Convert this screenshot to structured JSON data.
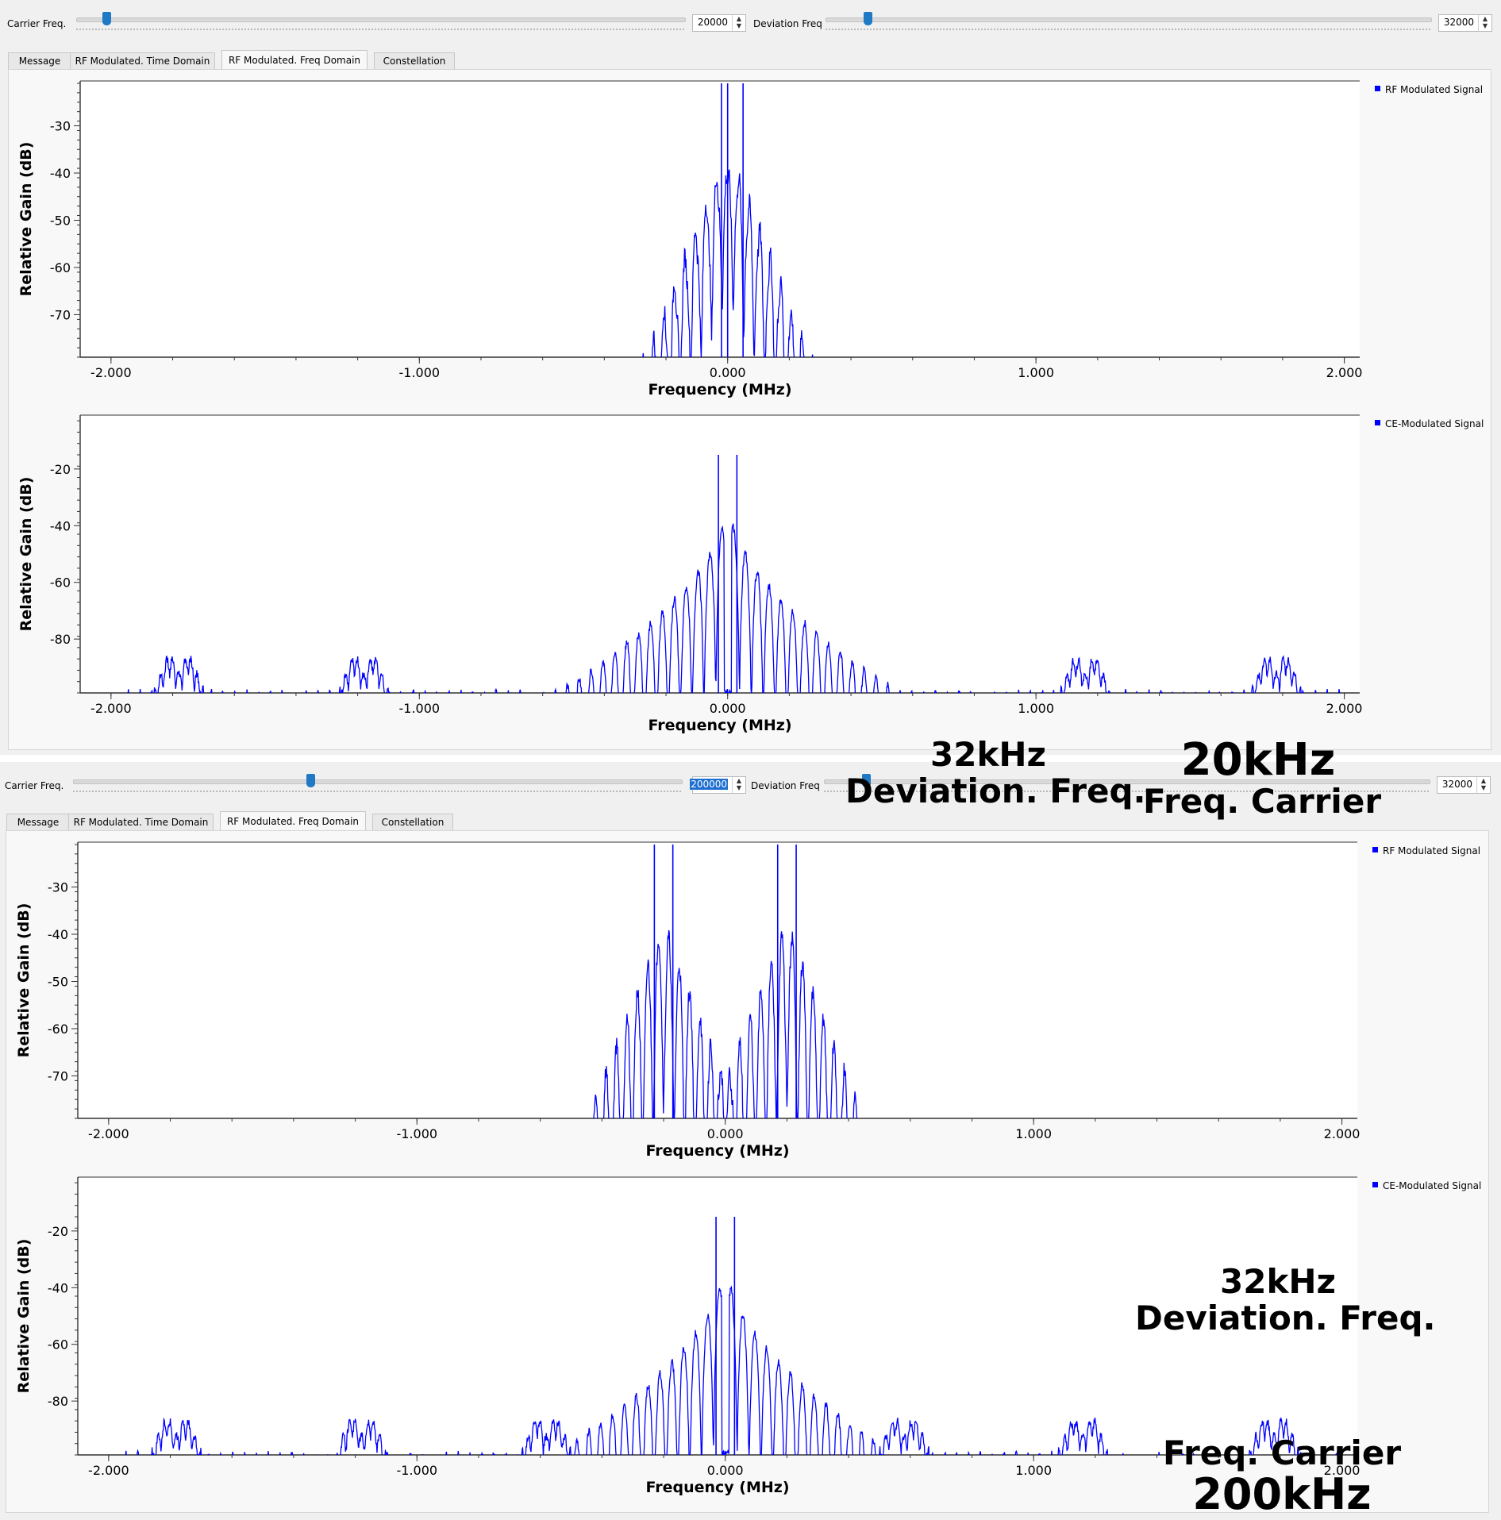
{
  "colors": {
    "series": "#0000ff",
    "background": "#f0f0f0",
    "plot_bg": "#ffffff",
    "slider": "#1f79c4"
  },
  "panels": [
    {
      "controls": {
        "carrier_label": "Carrier Freq.",
        "carrier_value": "20000",
        "carrier_slider": 0.05,
        "deviation_label": "Deviation Freq",
        "deviation_value": "32000",
        "deviation_slider": 0.07
      },
      "tabs": [
        "Message",
        "RF Modulated. Time Domain",
        "RF Modulated. Freq Domain",
        "Constellation"
      ],
      "active_tab": 2
    },
    {
      "controls": {
        "carrier_label": "Carrier Freq.",
        "carrier_value": "200000",
        "carrier_slider": 0.39,
        "deviation_label": "Deviation Freq",
        "deviation_value": "32000",
        "deviation_slider": 0.07
      },
      "tabs": [
        "Message",
        "RF Modulated. Time Domain",
        "RF Modulated. Freq Domain",
        "Constellation"
      ],
      "active_tab": 2
    }
  ],
  "chart_data": [
    {
      "type": "line",
      "panel": 0,
      "slot": "top",
      "series": [
        {
          "name": "RF Modulated Signal"
        }
      ],
      "xlabel": "Frequency (MHz)",
      "ylabel": "Relative Gain (dB)",
      "xlim": [
        -2.1,
        2.05
      ],
      "ylim": [
        -79,
        -20.5
      ],
      "xticks": [
        -2.0,
        -1.0,
        0.0,
        1.0,
        2.0
      ],
      "xtick_labels": [
        "-2.000",
        "-1.000",
        "0.000",
        "1.000",
        "2.000"
      ],
      "yticks": [
        -30,
        -40,
        -50,
        -60,
        -70
      ],
      "ytick_labels": [
        "-30",
        "-40",
        "-50",
        "-60",
        "-70"
      ],
      "carrier_mhz": 0.02,
      "deviation_mhz": 0.032,
      "peaks": [
        {
          "x": -0.02,
          "y": -21
        },
        {
          "x": 0.0,
          "y": -21
        },
        {
          "x": 0.05,
          "y": -21
        }
      ],
      "legend": "top-right"
    },
    {
      "type": "line",
      "panel": 0,
      "slot": "bottom",
      "series": [
        {
          "name": "CE-Modulated Signal"
        }
      ],
      "xlabel": "Frequency (MHz)",
      "ylabel": "Relative Gain (dB)",
      "xlim": [
        -2.1,
        2.05
      ],
      "ylim": [
        -99,
        -1
      ],
      "xticks": [
        -2.0,
        -1.0,
        0.0,
        1.0,
        2.0
      ],
      "xtick_labels": [
        "-2.000",
        "-1.000",
        "0.000",
        "1.000",
        "2.000"
      ],
      "yticks": [
        -20,
        -40,
        -60,
        -80
      ],
      "ytick_labels": [
        "-20",
        "-40",
        "-60",
        "-80"
      ],
      "peaks": [
        {
          "x": -0.03,
          "y": -15
        },
        {
          "x": 0.03,
          "y": -15
        }
      ],
      "spurs": [
        -1.81,
        -1.75,
        -1.21,
        -1.15,
        1.13,
        1.19,
        1.75,
        1.81
      ],
      "legend": "top-right"
    },
    {
      "type": "line",
      "panel": 1,
      "slot": "top",
      "series": [
        {
          "name": "RF Modulated Signal"
        }
      ],
      "xlabel": "Frequency (MHz)",
      "ylabel": "Relative Gain (dB)",
      "xlim": [
        -2.1,
        2.05
      ],
      "ylim": [
        -79,
        -20.5
      ],
      "xticks": [
        -2.0,
        -1.0,
        0.0,
        1.0,
        2.0
      ],
      "xtick_labels": [
        "-2.000",
        "-1.000",
        "0.000",
        "1.000",
        "2.000"
      ],
      "yticks": [
        -30,
        -40,
        -50,
        -60,
        -70
      ],
      "ytick_labels": [
        "-30",
        "-40",
        "-50",
        "-60",
        "-70"
      ],
      "carrier_mhz": 0.2,
      "deviation_mhz": 0.032,
      "peaks": [
        {
          "x": -0.23,
          "y": -21
        },
        {
          "x": -0.17,
          "y": -21
        },
        {
          "x": 0.17,
          "y": -21
        },
        {
          "x": 0.23,
          "y": -21
        }
      ],
      "legend": "top-right"
    },
    {
      "type": "line",
      "panel": 1,
      "slot": "bottom",
      "series": [
        {
          "name": "CE-Modulated Signal"
        }
      ],
      "xlabel": "Frequency (MHz)",
      "ylabel": "Relative Gain (dB)",
      "xlim": [
        -2.1,
        2.05
      ],
      "ylim": [
        -99,
        -1
      ],
      "xticks": [
        -2.0,
        -1.0,
        0.0,
        1.0,
        2.0
      ],
      "xtick_labels": [
        "-2.000",
        "-1.000",
        "0.000",
        "1.000",
        "2.000"
      ],
      "yticks": [
        -20,
        -40,
        -60,
        -80
      ],
      "ytick_labels": [
        "-20",
        "-40",
        "-60",
        "-80"
      ],
      "peaks": [
        {
          "x": -0.03,
          "y": -15
        },
        {
          "x": 0.03,
          "y": -15
        }
      ],
      "spurs": [
        -1.81,
        -1.75,
        -1.21,
        -1.15,
        -0.61,
        -0.55,
        0.55,
        0.61,
        1.13,
        1.19,
        1.75,
        1.81
      ],
      "legend": "top-right"
    }
  ],
  "annotations": [
    {
      "line1": "32kHz",
      "line2": "Deviation. Freq."
    },
    {
      "line1": "20kHz",
      "line2": "Freq. Carrier"
    },
    {
      "line1": "32kHz",
      "line2": "Deviation. Freq."
    },
    {
      "line1": "Freq. Carrier",
      "line2": "200kHz"
    }
  ]
}
